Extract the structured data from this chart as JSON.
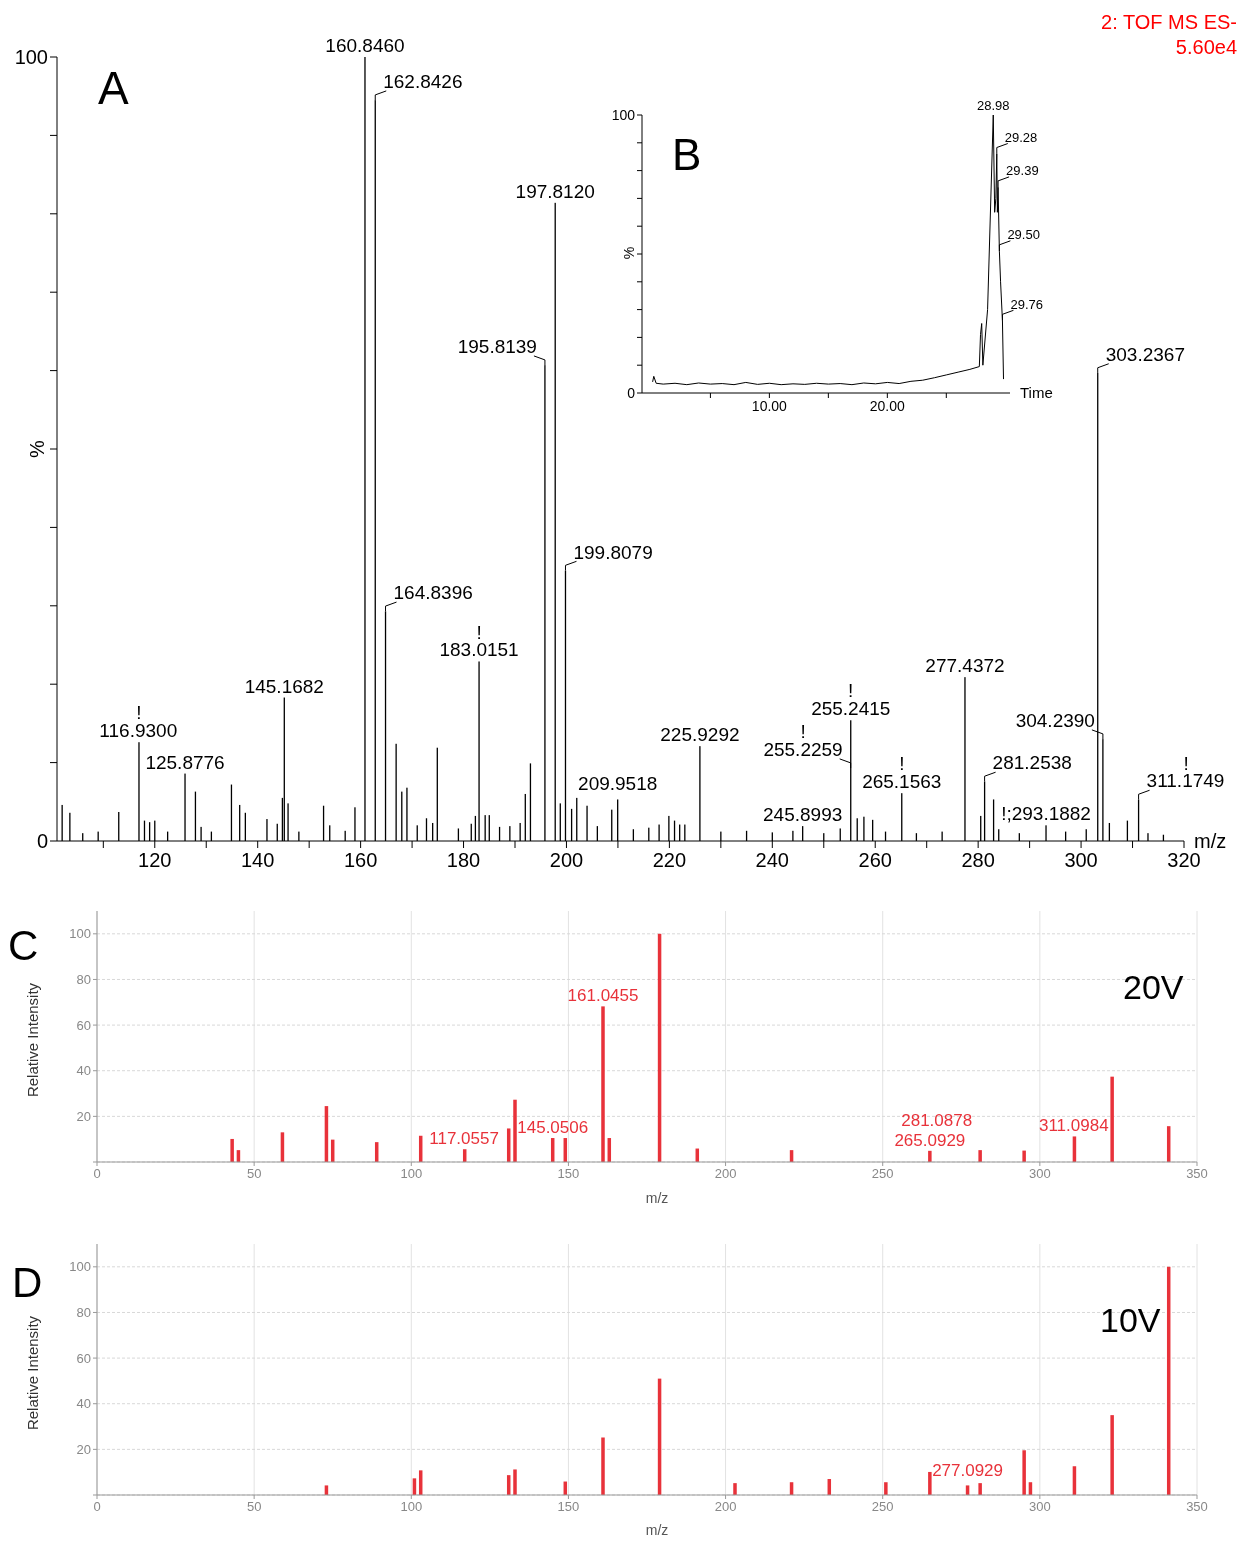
{
  "chart_data": [
    {
      "type": "bar",
      "xlabel": "m/z",
      "ylabel": "%",
      "color": "#000000",
      "x": [
        102,
        103.5,
        106,
        109,
        113,
        116.93,
        118,
        119,
        120,
        122.5,
        125.8776,
        127.9,
        129,
        131,
        134.9,
        136.5,
        137.6,
        141.8,
        143.8,
        144.8,
        145.1682,
        145.9,
        148,
        152.8,
        154,
        157,
        158.9,
        160.846,
        162.8426,
        164.8396,
        166.9,
        168,
        169,
        171,
        172.8,
        174,
        174.9,
        179,
        181.5,
        182.3,
        183.0151,
        184.2,
        185,
        187,
        189,
        191,
        192,
        193,
        195.8139,
        197.812,
        198.8,
        199.8079,
        201,
        202,
        204,
        206,
        208.8,
        209.9518,
        213,
        216,
        218,
        219.9,
        221,
        222,
        223,
        225.9292,
        230,
        235,
        240,
        244,
        245.8993,
        250,
        253.2,
        255.2415,
        256.5,
        257.8,
        259.5,
        262,
        265.1563,
        268,
        273,
        277.4372,
        280.5,
        281.2538,
        283,
        284,
        288,
        293.1882,
        297,
        301,
        303.2367,
        304.239,
        305.5,
        309,
        311.1749,
        313,
        316
      ],
      "values": [
        4.6,
        3.6,
        1.0,
        1.2,
        3.7,
        12.6,
        2.6,
        2.4,
        2.6,
        1.2,
        8.6,
        6.3,
        1.8,
        1.2,
        7.2,
        4.6,
        3.6,
        2.8,
        2.2,
        5.5,
        18.3,
        4.8,
        1.2,
        4.5,
        2.0,
        1.3,
        4.3,
        100,
        94.5,
        29.3,
        12.4,
        6.3,
        6.8,
        2.0,
        2.9,
        2.3,
        11.9,
        1.6,
        2.2,
        3.2,
        22.9,
        3.3,
        3.3,
        1.8,
        1.9,
        2.3,
        6.0,
        9.9,
        60.7,
        81.4,
        4.8,
        34.5,
        4.1,
        5.5,
        4.5,
        1.9,
        4.0,
        5.3,
        1.5,
        1.7,
        2.1,
        3.2,
        2.6,
        2.1,
        2.1,
        12.1,
        1.2,
        1.3,
        1.1,
        1.3,
        1.9,
        1.0,
        1.6,
        15.4,
        2.9,
        3.1,
        2.7,
        1.2,
        6.1,
        1.0,
        1.2,
        20.9,
        3.2,
        7.6,
        5.3,
        1.5,
        1.0,
        2.0,
        1.2,
        1.5,
        59.7,
        13.0,
        2.3,
        2.6,
        5.3,
        1.0,
        0.8
      ],
      "xlim": [
        101,
        320
      ],
      "ylim": [
        0,
        100
      ],
      "xticks": [
        {
          "value": 110,
          "label": null
        },
        120,
        {
          "value": 130,
          "label": null
        },
        140,
        {
          "value": 150,
          "label": null
        },
        160,
        {
          "value": 170,
          "label": null
        },
        180,
        {
          "value": 190,
          "label": null
        },
        200,
        {
          "value": 210,
          "label": null
        },
        220,
        {
          "value": 230,
          "label": null
        },
        240,
        {
          "value": 250,
          "label": null
        },
        260,
        {
          "value": 270,
          "label": null
        },
        280,
        {
          "value": 290,
          "label": null
        },
        300,
        {
          "value": 310,
          "label": null
        },
        320
      ],
      "yticks": [
        0,
        {
          "value": 10,
          "label": null
        },
        {
          "value": 20,
          "label": null
        },
        {
          "value": 30,
          "label": null
        },
        {
          "value": 40,
          "label": null
        },
        {
          "value": 50,
          "label": null
        },
        {
          "value": 60,
          "label": null
        },
        {
          "value": 70,
          "label": null
        },
        {
          "value": 80,
          "label": null
        },
        {
          "value": 90,
          "label": null
        },
        100
      ],
      "annotations": [
        "A",
        "2: TOF MS ES-",
        "5.60e4",
        {
          "text": "160.8460",
          "x": 160.846,
          "y": 100
        },
        {
          "text": "162.8426",
          "x": 162.8426,
          "y": 94.5
        },
        {
          "text": "197.8120",
          "x": 197.812,
          "y": 81.4
        },
        {
          "text": "195.8139",
          "x": 195.8139,
          "y": 60.7
        },
        {
          "text": "303.2367",
          "x": 303.2367,
          "y": 59.7
        },
        {
          "text": "199.8079",
          "x": 199.8079,
          "y": 34.5
        },
        {
          "text": "164.8396",
          "x": 164.8396,
          "y": 29.3
        },
        {
          "text": "183.0151",
          "x": 183.0151,
          "y": 22.9
        },
        {
          "text": "!",
          "x": 183.0151,
          "y": 22.9
        },
        {
          "text": "277.4372",
          "x": 277.4372,
          "y": 20.9
        },
        {
          "text": "145.1682",
          "x": 145.1682,
          "y": 18.3
        },
        {
          "text": "255.2415",
          "x": 255.2415,
          "y": 15.4
        },
        {
          "text": "!",
          "x": 255.2415,
          "y": 15.4
        },
        {
          "text": "304.2390",
          "x": 304.239,
          "y": 13.0
        },
        {
          "text": "116.9300",
          "x": 116.93,
          "y": 12.6
        },
        {
          "text": "!",
          "x": 116.93,
          "y": 12.6
        },
        {
          "text": "225.9292",
          "x": 225.9292,
          "y": 12.1
        },
        {
          "text": "255.2259",
          "x": 255.2259,
          "y": 9.3
        },
        {
          "text": "!",
          "x": 255.2259,
          "y": 9.3
        },
        {
          "text": "125.8776",
          "x": 125.8776,
          "y": 8.6
        },
        {
          "text": "281.2538",
          "x": 281.2538,
          "y": 7.6
        },
        {
          "text": "265.1563",
          "x": 265.1563,
          "y": 6.1
        },
        {
          "text": "!",
          "x": 265.1563,
          "y": 6.1
        },
        {
          "text": "209.9518",
          "x": 209.9518,
          "y": 5.3
        },
        {
          "text": "311.1749",
          "x": 311.1749,
          "y": 5.3
        },
        {
          "text": "!",
          "x": 311.1749,
          "y": 5.3
        },
        {
          "text": "!;293.1882",
          "x": 293.1882,
          "y": 2.0
        },
        {
          "text": "245.8993",
          "x": 245.8993,
          "y": 1.9
        }
      ]
    },
    {
      "type": "line",
      "xlabel": "Time",
      "ylabel": "%",
      "color": "#000000",
      "x": [
        0.1,
        0.2,
        0.4,
        1,
        2,
        3,
        4,
        5,
        6,
        7,
        8,
        9,
        10,
        11,
        12,
        13,
        14,
        15,
        16,
        17,
        18,
        19,
        20,
        21,
        22,
        23,
        24,
        25,
        26,
        27,
        27.8,
        27.9,
        28.0,
        28.1,
        28.5,
        28.98,
        29.1,
        29.2,
        29.28,
        29.33,
        29.39,
        29.5,
        29.6,
        29.76,
        29.85
      ],
      "values": [
        4,
        6,
        3.5,
        3.2,
        3.5,
        3.0,
        3.6,
        3.2,
        3.4,
        3.0,
        3.8,
        3.1,
        3.5,
        3.0,
        3.3,
        3.1,
        3.5,
        3.2,
        3.4,
        3.0,
        3.6,
        3.3,
        3.8,
        3.4,
        4.2,
        4.6,
        5.5,
        6.5,
        7.5,
        8.5,
        9.5,
        21,
        25,
        10,
        30,
        100,
        65,
        70,
        86,
        65,
        74,
        51,
        40,
        26,
        5
      ],
      "xlim": [
        -0.8,
        30.4
      ],
      "ylim": [
        0,
        100
      ],
      "xticks": [
        {
          "value": 5,
          "label": null
        },
        {
          "value": 10,
          "label": "10.00"
        },
        {
          "value": 15,
          "label": null
        },
        {
          "value": 20,
          "label": "20.00"
        },
        {
          "value": 25,
          "label": null
        }
      ],
      "yticks": [
        0,
        {
          "value": 10,
          "label": null
        },
        {
          "value": 20,
          "label": null
        },
        {
          "value": 30,
          "label": null
        },
        {
          "value": 40,
          "label": null
        },
        {
          "value": 50,
          "label": null
        },
        {
          "value": 60,
          "label": null
        },
        {
          "value": 70,
          "label": null
        },
        {
          "value": 80,
          "label": null
        },
        {
          "value": 90,
          "label": null
        },
        100
      ],
      "annotations": [
        "B",
        {
          "text": "28.98",
          "x": 28.98,
          "y": 100
        },
        {
          "text": "29.28",
          "x": 29.28,
          "y": 86
        },
        {
          "text": "29.39",
          "x": 29.39,
          "y": 74
        },
        {
          "text": "29.50",
          "x": 29.5,
          "y": 51
        },
        {
          "text": "29.76",
          "x": 29.76,
          "y": 26
        }
      ]
    },
    {
      "type": "bar",
      "xlabel": "m/z",
      "ylabel": "Relative Intensity",
      "color": "#e8323a",
      "grid": true,
      "x": [
        43,
        45,
        59,
        73,
        75,
        89,
        103,
        117,
        131,
        133,
        145,
        149,
        161,
        163,
        179,
        191,
        221,
        265,
        281,
        295,
        311,
        323,
        341
      ],
      "values": [
        10.1,
        5.2,
        13,
        24.5,
        9.8,
        8.7,
        11.5,
        5.6,
        14.7,
        27.3,
        10.5,
        10.5,
        68.2,
        10.5,
        100,
        5.9,
        5.2,
        4.9,
        5.2,
        5,
        11.2,
        37.4,
        15.7
      ],
      "xlim": [
        0,
        350
      ],
      "ylim": [
        0,
        110
      ],
      "xticks": [
        0,
        50,
        100,
        150,
        200,
        250,
        300,
        350
      ],
      "yticks": [
        {
          "value": 0,
          "label": null
        },
        20,
        40,
        60,
        80,
        100
      ],
      "annotations": [
        "C",
        "20V",
        {
          "text": "161.0455",
          "x": 161,
          "y": 68.2
        },
        {
          "text": "117.0557",
          "x": 117,
          "y": 5.6
        },
        {
          "text": "145.0506",
          "x": 145,
          "y": 10.5
        },
        {
          "text": "311.0984",
          "x": 311,
          "y": 11.2
        },
        {
          "text": "265.0929",
          "x": 265,
          "y": 4.9
        },
        {
          "text": "281.0878",
          "x": 281,
          "y": 5.2
        }
      ]
    },
    {
      "type": "bar",
      "xlabel": "m/z",
      "ylabel": "Relative Intensity",
      "color": "#e8323a",
      "grid": true,
      "x": [
        73,
        101,
        103,
        131,
        133,
        149,
        161,
        179,
        203,
        221,
        233,
        251,
        265,
        277,
        281,
        295,
        297,
        311,
        323,
        341
      ],
      "values": [
        4.2,
        7.3,
        10.8,
        8.7,
        11.2,
        5.9,
        25.2,
        51,
        5.2,
        5.6,
        7,
        5.6,
        10.1,
        4.2,
        5.2,
        19.6,
        5.6,
        12.6,
        35,
        100
      ],
      "xlim": [
        0,
        350
      ],
      "ylim": [
        0,
        110
      ],
      "xticks": [
        0,
        50,
        100,
        150,
        200,
        250,
        300,
        350
      ],
      "yticks": [
        {
          "value": 0,
          "label": null
        },
        20,
        40,
        60,
        80,
        100
      ],
      "annotations": [
        "D",
        "10V",
        {
          "text": "277.0929",
          "x": 277,
          "y": 4.2
        }
      ]
    }
  ]
}
